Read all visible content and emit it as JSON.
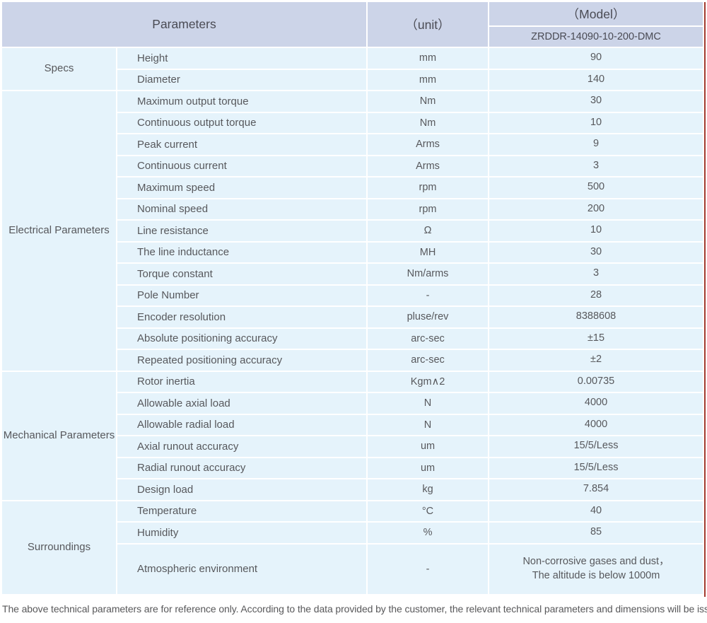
{
  "header": {
    "parameters": "Parameters",
    "unit": "（unit）",
    "model": "（Model）",
    "model_number": "ZRDDR-14090-10-200-DMC"
  },
  "sections": [
    {
      "category": "Specs",
      "rows": [
        {
          "name": "Height",
          "unit": "mm",
          "value": "90"
        },
        {
          "name": "Diameter",
          "unit": "mm",
          "value": "140"
        }
      ]
    },
    {
      "category": "Electrical Parameters",
      "rows": [
        {
          "name": "Maximum output torque",
          "unit": "Nm",
          "value": "30"
        },
        {
          "name": "Continuous output torque",
          "unit": "Nm",
          "value": "10"
        },
        {
          "name": "Peak current",
          "unit": "Arms",
          "value": "9"
        },
        {
          "name": "Continuous current",
          "unit": "Arms",
          "value": "3"
        },
        {
          "name": "Maximum speed",
          "unit": "rpm",
          "value": "500"
        },
        {
          "name": "Nominal speed",
          "unit": "rpm",
          "value": "200"
        },
        {
          "name": "Line resistance",
          "unit": "Ω",
          "value": "10"
        },
        {
          "name": "The line inductance",
          "unit": "MH",
          "value": "30"
        },
        {
          "name": "Torque constant",
          "unit": "Nm/arms",
          "value": "3"
        },
        {
          "name": "Pole Number",
          "unit": "-",
          "value": "28"
        },
        {
          "name": "Encoder resolution",
          "unit": "pluse/rev",
          "value": "8388608"
        },
        {
          "name": "Absolute positioning accuracy",
          "unit": "arc-sec",
          "value": "±15"
        },
        {
          "name": "Repeated positioning accuracy",
          "unit": "arc-sec",
          "value": "±2"
        }
      ]
    },
    {
      "category": "Mechanical Parameters",
      "rows": [
        {
          "name": "Rotor inertia",
          "unit": "Kgm∧2",
          "value": "0.00735"
        },
        {
          "name": "Allowable axial load",
          "unit": "N",
          "value": "4000"
        },
        {
          "name": "Allowable radial load",
          "unit": "N",
          "value": "4000"
        },
        {
          "name": "Axial runout accuracy",
          "unit": "um",
          "value": "15/5/Less"
        },
        {
          "name": "Radial runout accuracy",
          "unit": "um",
          "value": "15/5/Less"
        },
        {
          "name": "Design load",
          "unit": "kg",
          "value": "7.854"
        }
      ]
    },
    {
      "category": "Surroundings",
      "rows": [
        {
          "name": "Temperature",
          "unit": "°C",
          "value": "40"
        },
        {
          "name": "Humidity",
          "unit": "%",
          "value": "85"
        },
        {
          "name": "Atmospheric environment",
          "unit": "-",
          "value": "Non-corrosive gases and dust，\nThe altitude is below 1000m",
          "tall": true
        }
      ]
    }
  ],
  "footer_note": "The above technical parameters are for reference only. According to the data provided by the customer, the relevant technical parameters and dimensions will be issued.",
  "colors": {
    "header_bg": "#ccd4e8",
    "row_bg": "#e5f3fb",
    "accent_line": "#a23a2e"
  }
}
